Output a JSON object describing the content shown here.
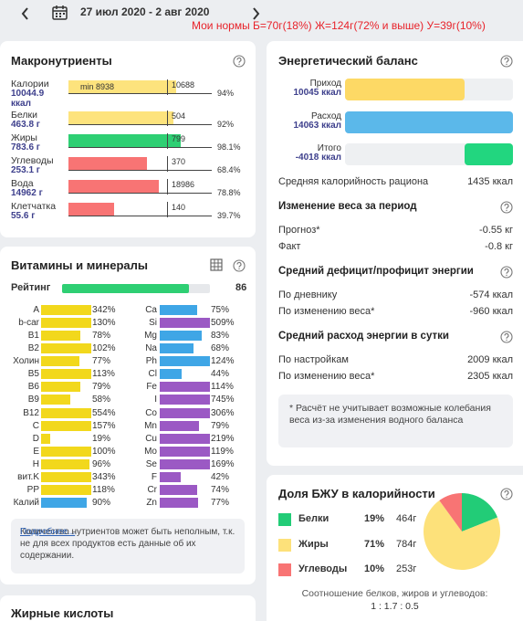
{
  "header": {
    "date_range": "27 июл 2020 - 2 авг 2020",
    "norms": "Мои нормы Б=70г(18%) Ж=124г(72% и выше) У=39г(10%)"
  },
  "macros": {
    "title": "Макронутриенты",
    "items": [
      {
        "name": "Калории",
        "amount": "10044.9 ккал",
        "min_label": "min 8938",
        "target": 10688,
        "percent": 94,
        "percent_label": "94%",
        "color": "#fde37d"
      },
      {
        "name": "Белки",
        "amount": "463.8 г",
        "target": 504,
        "percent": 92,
        "percent_label": "92%",
        "color": "#fde37d"
      },
      {
        "name": "Жиры",
        "amount": "783.6 г",
        "target": 799,
        "percent": 98.1,
        "percent_label": "98.1%",
        "color": "#2ecf73"
      },
      {
        "name": "Углеводы",
        "amount": "253.1 г",
        "target": 370,
        "percent": 68.4,
        "percent_label": "68.4%",
        "color": "#f87474"
      },
      {
        "name": "Вода",
        "amount": "14962 г",
        "target": 18986,
        "percent": 78.8,
        "percent_label": "78.8%",
        "color": "#f87474"
      },
      {
        "name": "Клетчатка",
        "amount": "55.6 г",
        "target": 140,
        "percent": 39.7,
        "percent_label": "39.7%",
        "color": "#f87474"
      }
    ]
  },
  "vitamins": {
    "title": "Витамины и минералы",
    "rating_label": "Рейтинг",
    "rating": 86,
    "rating_color": "#2ecf73",
    "left": [
      {
        "name": "A",
        "percent": 342,
        "percent_label": "342%",
        "color": "#f2d81c"
      },
      {
        "name": "b-car",
        "percent": 130,
        "percent_label": "130%",
        "color": "#f2d81c"
      },
      {
        "name": "B1",
        "percent": 78,
        "percent_label": "78%",
        "color": "#f2d81c"
      },
      {
        "name": "B2",
        "percent": 102,
        "percent_label": "102%",
        "color": "#f2d81c"
      },
      {
        "name": "Холин",
        "percent": 77,
        "percent_label": "77%",
        "color": "#f2d81c"
      },
      {
        "name": "B5",
        "percent": 113,
        "percent_label": "113%",
        "color": "#f2d81c"
      },
      {
        "name": "B6",
        "percent": 79,
        "percent_label": "79%",
        "color": "#f2d81c"
      },
      {
        "name": "B9",
        "percent": 58,
        "percent_label": "58%",
        "color": "#f2d81c"
      },
      {
        "name": "B12",
        "percent": 554,
        "percent_label": "554%",
        "color": "#f2d81c"
      },
      {
        "name": "C",
        "percent": 157,
        "percent_label": "157%",
        "color": "#f2d81c"
      },
      {
        "name": "D",
        "percent": 19,
        "percent_label": "19%",
        "color": "#f2d81c"
      },
      {
        "name": "E",
        "percent": 100,
        "percent_label": "100%",
        "color": "#f2d81c"
      },
      {
        "name": "H",
        "percent": 96,
        "percent_label": "96%",
        "color": "#f2d81c"
      },
      {
        "name": "вит.K",
        "percent": 343,
        "percent_label": "343%",
        "color": "#f2d81c"
      },
      {
        "name": "PP",
        "percent": 118,
        "percent_label": "118%",
        "color": "#f2d81c"
      },
      {
        "name": "Калий",
        "percent": 90,
        "percent_label": "90%",
        "color": "#3fa6e6"
      }
    ],
    "right": [
      {
        "name": "Ca",
        "percent": 75,
        "percent_label": "75%",
        "color": "#3fa6e6"
      },
      {
        "name": "Si",
        "percent": 509,
        "percent_label": "509%",
        "color": "#9b59c4"
      },
      {
        "name": "Mg",
        "percent": 83,
        "percent_label": "83%",
        "color": "#3fa6e6"
      },
      {
        "name": "Na",
        "percent": 68,
        "percent_label": "68%",
        "color": "#3fa6e6"
      },
      {
        "name": "Ph",
        "percent": 124,
        "percent_label": "124%",
        "color": "#3fa6e6"
      },
      {
        "name": "Cl",
        "percent": 44,
        "percent_label": "44%",
        "color": "#3fa6e6"
      },
      {
        "name": "Fe",
        "percent": 114,
        "percent_label": "114%",
        "color": "#9b59c4"
      },
      {
        "name": "I",
        "percent": 745,
        "percent_label": "745%",
        "color": "#9b59c4"
      },
      {
        "name": "Co",
        "percent": 306,
        "percent_label": "306%",
        "color": "#9b59c4"
      },
      {
        "name": "Mn",
        "percent": 79,
        "percent_label": "79%",
        "color": "#9b59c4"
      },
      {
        "name": "Cu",
        "percent": 219,
        "percent_label": "219%",
        "color": "#9b59c4"
      },
      {
        "name": "Mo",
        "percent": 119,
        "percent_label": "119%",
        "color": "#9b59c4"
      },
      {
        "name": "Se",
        "percent": 169,
        "percent_label": "169%",
        "color": "#9b59c4"
      },
      {
        "name": "F",
        "percent": 42,
        "percent_label": "42%",
        "color": "#9b59c4"
      },
      {
        "name": "Cr",
        "percent": 74,
        "percent_label": "74%",
        "color": "#9b59c4"
      },
      {
        "name": "Zn",
        "percent": 77,
        "percent_label": "77%",
        "color": "#9b59c4"
      }
    ],
    "note": "Количество нутриентов может быть неполным, т.к. не для всех продуктов есть данные об их содержании.",
    "link": "Подробнее..."
  },
  "fatty_acids": {
    "title": "Жирные кислоты"
  },
  "energy": {
    "title": "Энергетический баланс",
    "bars": [
      {
        "name": "Приход",
        "value": 10045,
        "value_label": "10045 ккал",
        "color": "#fdd965"
      },
      {
        "name": "Расход",
        "value": 14063,
        "value_label": "14063 ккал",
        "color": "#5bb8ea"
      },
      {
        "name": "Итого",
        "value": -4018,
        "value_label": "-4018 ккал",
        "color": "#22d67f"
      }
    ],
    "avg_label": "Средняя калорийность рациона",
    "avg_value": "1435 ккал",
    "sections": [
      {
        "title": "Изменение веса за период",
        "rows": [
          {
            "label": "Прогноз*",
            "value": "-0.55 кг"
          },
          {
            "label": "Факт",
            "value": "-0.8 кг"
          }
        ]
      },
      {
        "title": "Средний дефицит/профицит энергии",
        "rows": [
          {
            "label": "По дневнику",
            "value": "-574 ккал"
          },
          {
            "label": "По изменению веса*",
            "value": "-960 ккал"
          }
        ]
      },
      {
        "title": "Средний расход энергии в сутки",
        "rows": [
          {
            "label": "По настройкам",
            "value": "2009 ккал"
          },
          {
            "label": "По изменению веса*",
            "value": "2305 ккал"
          }
        ]
      }
    ],
    "note": "* Расчёт не учитывает возможные колебания веса из-за изменения водного баланса"
  },
  "bju": {
    "title": "Доля БЖУ в калорийности",
    "items": [
      {
        "name": "Белки",
        "percent": 19,
        "percent_label": "19%",
        "grams": "464г",
        "color": "#22cc77"
      },
      {
        "name": "Жиры",
        "percent": 71,
        "percent_label": "71%",
        "grams": "784г",
        "color": "#fde17a"
      },
      {
        "name": "Углеводы",
        "percent": 10,
        "percent_label": "10%",
        "grams": "253г",
        "color": "#f87474"
      }
    ],
    "ratio_label": "Соотношение белков, жиров и углеводов:",
    "ratio": "1 : 1.7 : 0.5"
  }
}
